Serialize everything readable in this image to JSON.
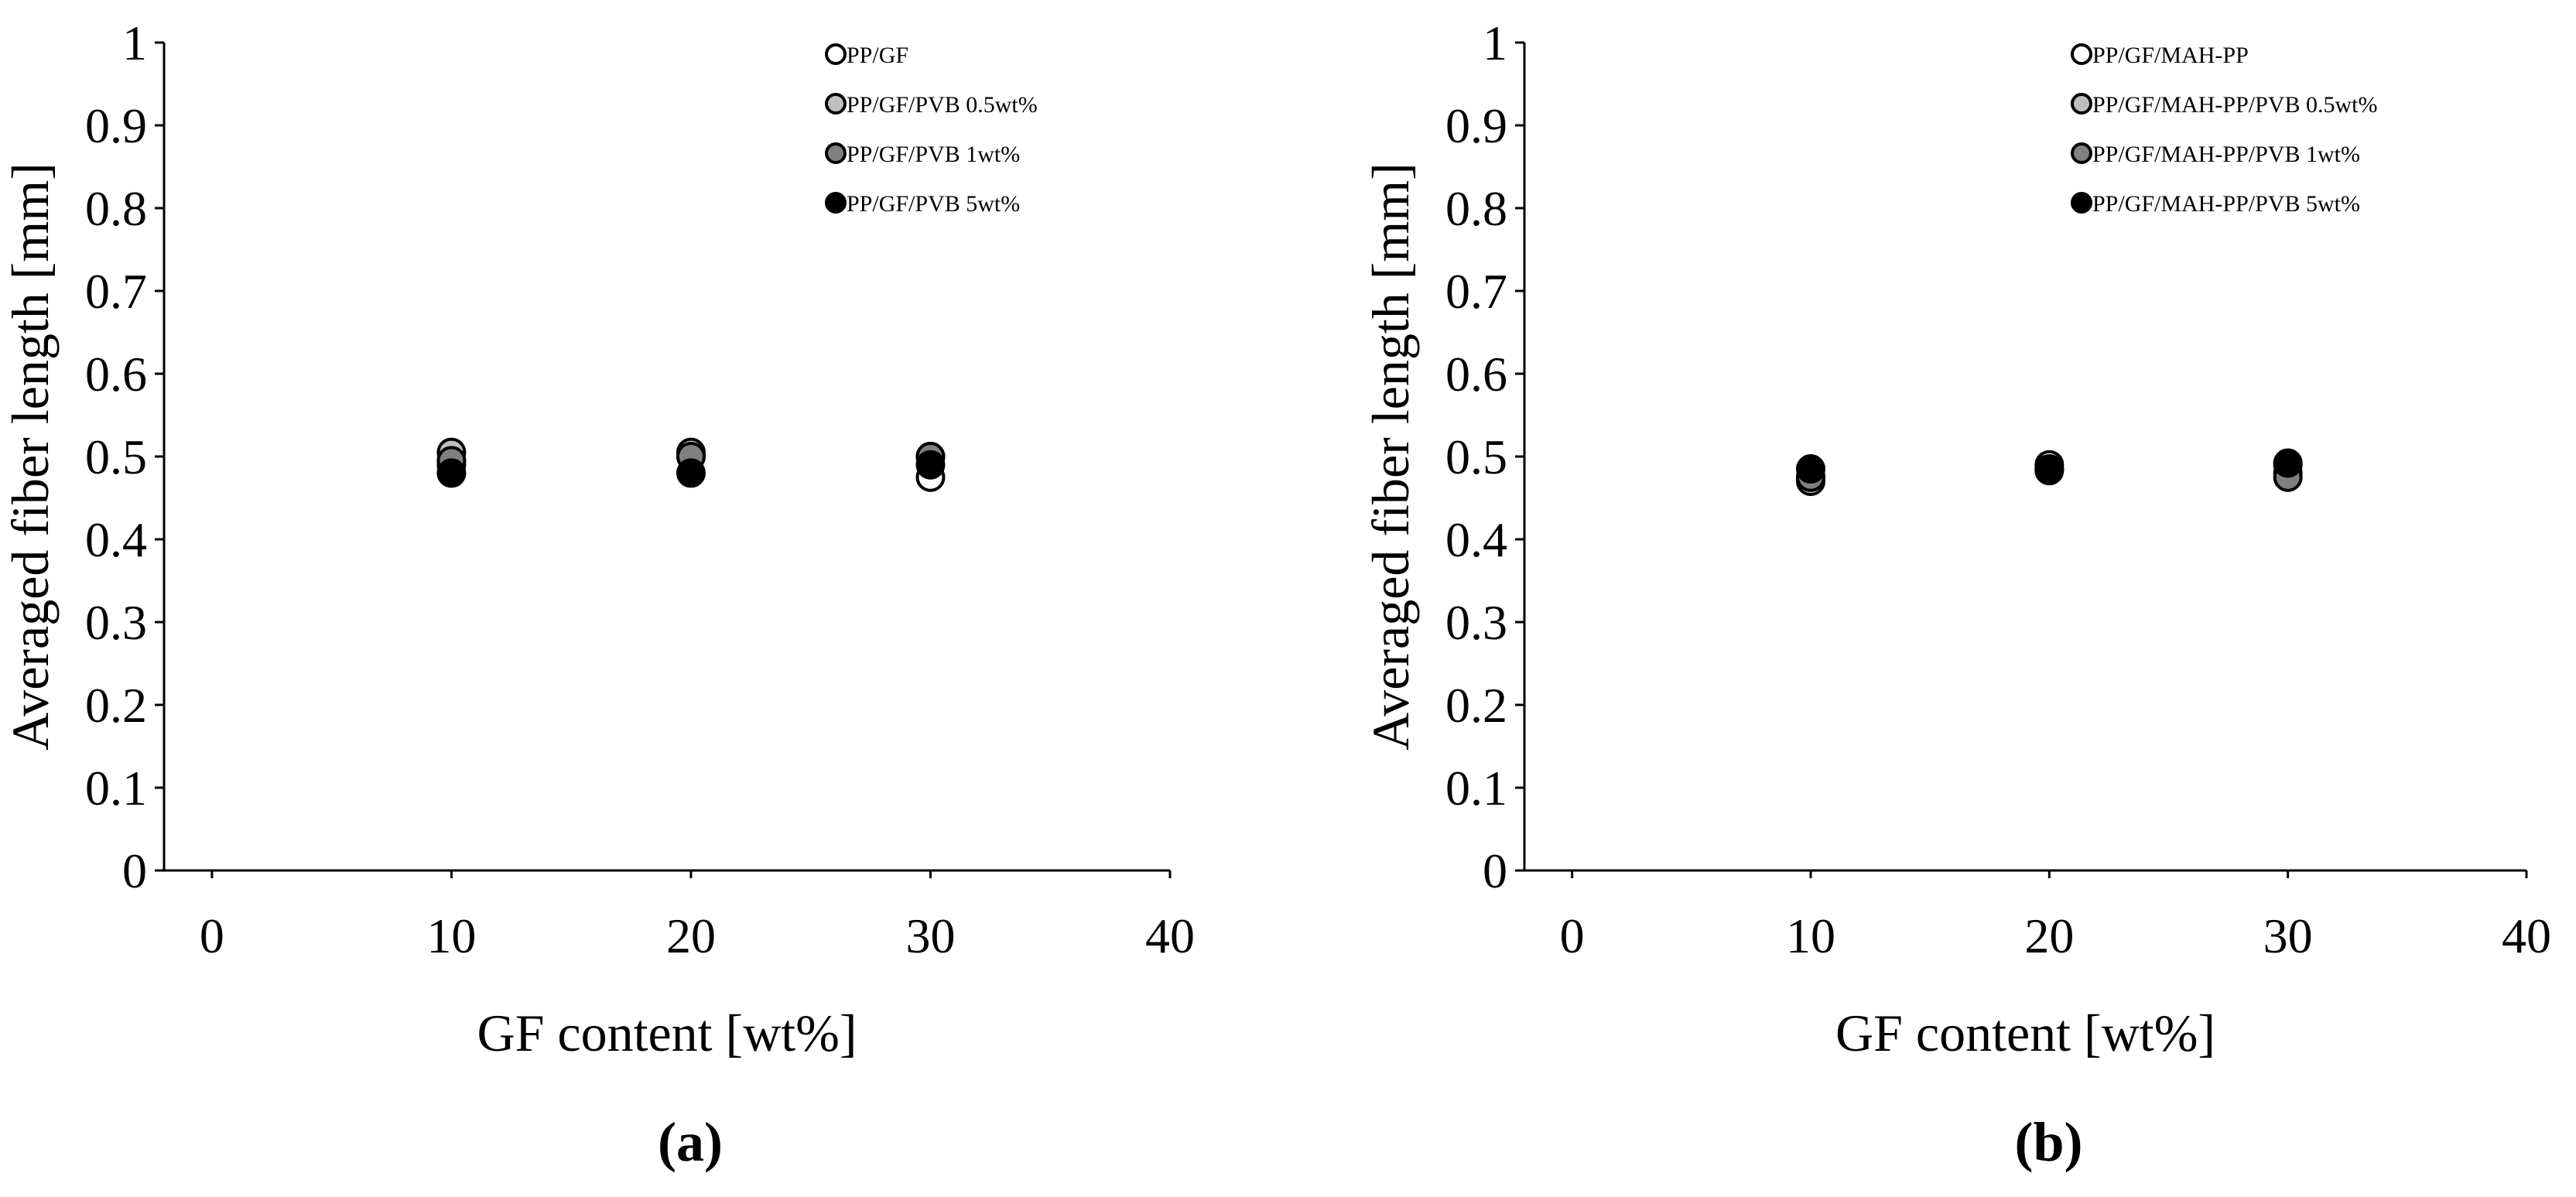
{
  "chart_data": [
    {
      "type": "scatter",
      "panel_label": "(a)",
      "x_label": "GF content [wt%]",
      "y_label": "Averaged fiber length [mm]",
      "xlim": [
        -2,
        40
      ],
      "xticks": [
        0,
        10,
        20,
        30,
        40
      ],
      "ylim": [
        0,
        1
      ],
      "yticks": [
        0,
        0.1,
        0.2,
        0.3,
        0.4,
        0.5,
        0.6,
        0.7,
        0.8,
        0.9,
        1
      ],
      "grid": false,
      "legend": "upper right",
      "x": [
        10,
        20,
        30
      ],
      "series": [
        {
          "name": "PP/GF",
          "color": "#ffffff",
          "values": [
            0.49,
            0.5,
            0.475
          ]
        },
        {
          "name": "PP/GF/PVB 0.5wt%",
          "color": "#bfbfbf",
          "values": [
            0.505,
            0.505,
            0.5
          ]
        },
        {
          "name": "PP/GF/PVB 1wt%",
          "color": "#808080",
          "values": [
            0.495,
            0.5,
            0.5
          ]
        },
        {
          "name": "PP/GF/PVB 5wt%",
          "color": "#000000",
          "values": [
            0.48,
            0.48,
            0.49
          ]
        }
      ]
    },
    {
      "type": "scatter",
      "panel_label": "(b)",
      "x_label": "GF content [wt%]",
      "y_label": "Averaged fiber length [mm]",
      "xlim": [
        -2,
        40
      ],
      "xticks": [
        0,
        10,
        20,
        30,
        40
      ],
      "ylim": [
        0,
        1
      ],
      "yticks": [
        0,
        0.1,
        0.2,
        0.3,
        0.4,
        0.5,
        0.6,
        0.7,
        0.8,
        0.9,
        1
      ],
      "grid": false,
      "legend": "upper right",
      "x": [
        10,
        20,
        30
      ],
      "series": [
        {
          "name": "PP/GF/MAH-PP",
          "color": "#ffffff",
          "values": [
            0.475,
            0.49,
            0.49
          ]
        },
        {
          "name": "PP/GF/MAH-PP/PVB 0.5wt%",
          "color": "#bfbfbf",
          "values": [
            0.47,
            0.485,
            0.48
          ]
        },
        {
          "name": "PP/GF/MAH-PP/PVB 1wt%",
          "color": "#808080",
          "values": [
            0.475,
            0.485,
            0.475
          ]
        },
        {
          "name": "PP/GF/MAH-PP/PVB 5wt%",
          "color": "#000000",
          "values": [
            0.485,
            0.483,
            0.492
          ]
        }
      ]
    }
  ]
}
